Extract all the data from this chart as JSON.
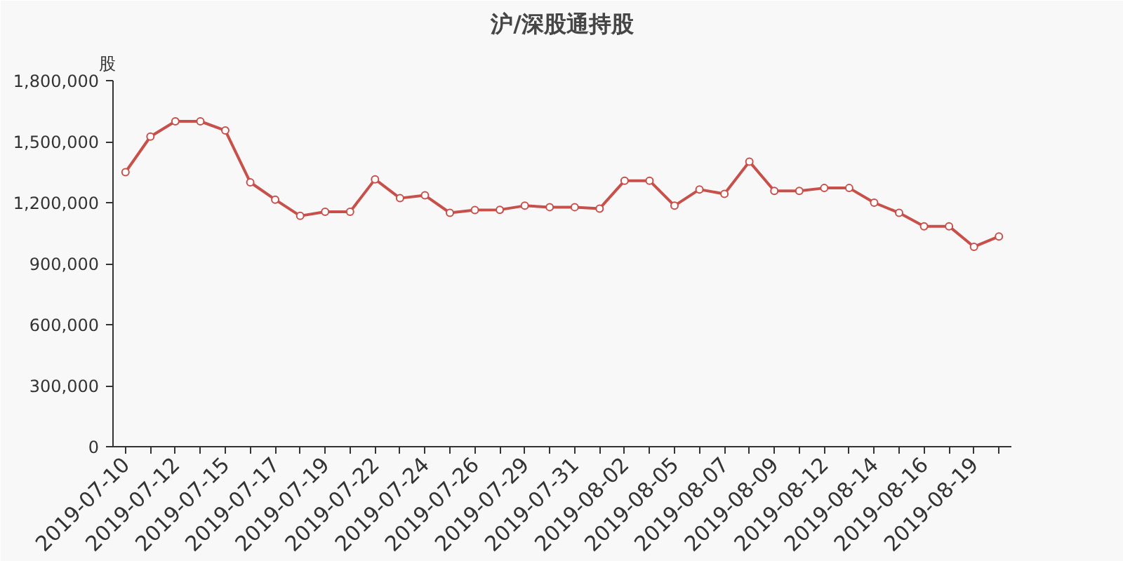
{
  "chart_data": {
    "type": "line",
    "title": "沪/深股通持股",
    "ylabel": "股",
    "categories": [
      "2019-07-10",
      null,
      "2019-07-12",
      null,
      "2019-07-15",
      null,
      "2019-07-17",
      null,
      "2019-07-19",
      null,
      "2019-07-22",
      null,
      "2019-07-24",
      null,
      "2019-07-26",
      null,
      "2019-07-29",
      null,
      "2019-07-31",
      null,
      "2019-08-02",
      null,
      "2019-08-05",
      null,
      "2019-08-07",
      null,
      "2019-08-09",
      null,
      "2019-08-12",
      null,
      "2019-08-14",
      null,
      "2019-08-16",
      null,
      "2019-08-19",
      null
    ],
    "values": [
      1350000,
      1525000,
      1600000,
      1600000,
      1555000,
      1300000,
      1215000,
      1135000,
      1155000,
      1155000,
      1315000,
      1222000,
      1236000,
      1150000,
      1164000,
      1165000,
      1185000,
      1178000,
      1178000,
      1171000,
      1308000,
      1308000,
      1185000,
      1265000,
      1243000,
      1402000,
      1258000,
      1258000,
      1272000,
      1272000,
      1200000,
      1150000,
      1084000,
      1084000,
      983000,
      1034000
    ],
    "color": "#c8504b",
    "marker": "circle",
    "ylim": [
      0,
      1800000
    ],
    "yticks": [
      0,
      {
        "value": 300000,
        "label": "300,000"
      },
      {
        "value": 600000,
        "label": "600,000"
      },
      {
        "value": 900000,
        "label": "900,000"
      },
      {
        "value": 1200000,
        "label": "1,200,000"
      },
      {
        "value": 1500000,
        "label": "1,500,000"
      },
      {
        "value": 1800000,
        "label": "1,800,000"
      }
    ]
  }
}
